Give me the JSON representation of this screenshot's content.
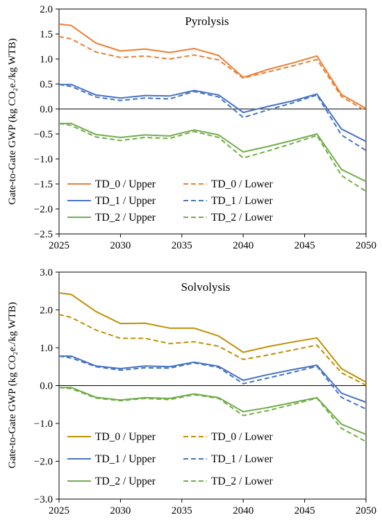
{
  "chart_data": [
    {
      "type": "line",
      "title": "Pyrolysis",
      "ylabel": "Gate-to-Gate GWP (kg CO₂e./kg WTB)",
      "xlabel": "",
      "xlim": [
        2025,
        2050
      ],
      "ylim": [
        -2.5,
        2.0
      ],
      "xticks": [
        2025,
        2030,
        2035,
        2040,
        2045,
        2050
      ],
      "yticks": [
        -2.5,
        -2.0,
        -1.5,
        -1.0,
        -0.5,
        0.0,
        0.5,
        1.0,
        1.5,
        2.0
      ],
      "ytick_labels": [
        "−2.5",
        "−2.0",
        "−1.5",
        "−1.0",
        "−0.5",
        "0.0",
        "0.5",
        "1.0",
        "1.5",
        "2.0"
      ],
      "legend": "lower-left, two columns",
      "grid": false,
      "zero_line": true,
      "x": [
        2025,
        2026,
        2028,
        2030,
        2032,
        2034,
        2036,
        2038,
        2040,
        2042,
        2044,
        2046,
        2048,
        2050
      ],
      "series": [
        {
          "name": "TD_0 / Upper",
          "color": "#ED7D31",
          "dash": "solid",
          "values": [
            1.7,
            1.67,
            1.32,
            1.16,
            1.2,
            1.13,
            1.21,
            1.07,
            0.63,
            0.79,
            0.92,
            1.06,
            0.29,
            0.01
          ]
        },
        {
          "name": "TD_0 / Lower",
          "color": "#ED7D31",
          "dash": "dashed",
          "values": [
            1.45,
            1.4,
            1.14,
            1.03,
            1.06,
            1.0,
            1.08,
            0.98,
            0.62,
            0.74,
            0.86,
            0.99,
            0.25,
            -0.04
          ]
        },
        {
          "name": "TD_1 / Upper",
          "color": "#4472C4",
          "dash": "solid",
          "values": [
            0.49,
            0.49,
            0.28,
            0.22,
            0.27,
            0.26,
            0.37,
            0.28,
            -0.07,
            0.05,
            0.16,
            0.3,
            -0.4,
            -0.65
          ]
        },
        {
          "name": "TD_1 / Lower",
          "color": "#4472C4",
          "dash": "dashed",
          "values": [
            0.49,
            0.45,
            0.24,
            0.17,
            0.22,
            0.2,
            0.35,
            0.24,
            -0.17,
            -0.02,
            0.12,
            0.28,
            -0.52,
            -0.83
          ]
        },
        {
          "name": "TD_2 / Upper",
          "color": "#70AD47",
          "dash": "solid",
          "values": [
            -0.29,
            -0.29,
            -0.51,
            -0.57,
            -0.52,
            -0.54,
            -0.42,
            -0.52,
            -0.86,
            -0.75,
            -0.63,
            -0.5,
            -1.21,
            -1.45
          ]
        },
        {
          "name": "TD_2 / Lower",
          "color": "#70AD47",
          "dash": "dashed",
          "values": [
            -0.29,
            -0.33,
            -0.56,
            -0.63,
            -0.57,
            -0.59,
            -0.45,
            -0.57,
            -0.98,
            -0.84,
            -0.69,
            -0.53,
            -1.33,
            -1.65
          ]
        }
      ]
    },
    {
      "type": "line",
      "title": "Solvolysis",
      "ylabel": "Gate-to-Gate GWP (kg CO₂e./kg WTB)",
      "xlabel": "",
      "xlim": [
        2025,
        2050
      ],
      "ylim": [
        -3.0,
        3.0
      ],
      "xticks": [
        2025,
        2030,
        2035,
        2040,
        2045,
        2050
      ],
      "yticks": [
        -3.0,
        -2.0,
        -1.0,
        0.0,
        1.0,
        2.0,
        3.0
      ],
      "ytick_labels": [
        "−3.0",
        "−2.0",
        "−1.0",
        "0.0",
        "1.0",
        "2.0",
        "3.0"
      ],
      "legend": "lower-left, two columns",
      "grid": false,
      "zero_line": true,
      "x": [
        2025,
        2026,
        2028,
        2030,
        2032,
        2034,
        2036,
        2038,
        2040,
        2042,
        2044,
        2046,
        2048,
        2050
      ],
      "series": [
        {
          "name": "TD_0 / Upper",
          "color": "#BF8F00",
          "dash": "solid",
          "values": [
            2.45,
            2.41,
            1.96,
            1.64,
            1.65,
            1.52,
            1.52,
            1.31,
            0.88,
            1.03,
            1.15,
            1.26,
            0.45,
            0.09
          ]
        },
        {
          "name": "TD_0 / Lower",
          "color": "#BF8F00",
          "dash": "dashed",
          "values": [
            1.88,
            1.8,
            1.47,
            1.25,
            1.25,
            1.11,
            1.16,
            1.04,
            0.69,
            0.81,
            0.94,
            1.07,
            0.34,
            0.01
          ]
        },
        {
          "name": "TD_1 / Upper",
          "color": "#4472C4",
          "dash": "solid",
          "values": [
            0.78,
            0.78,
            0.52,
            0.45,
            0.52,
            0.5,
            0.62,
            0.51,
            0.14,
            0.29,
            0.42,
            0.54,
            -0.2,
            -0.44
          ]
        },
        {
          "name": "TD_1 / Lower",
          "color": "#4472C4",
          "dash": "dashed",
          "values": [
            0.78,
            0.73,
            0.5,
            0.41,
            0.47,
            0.46,
            0.6,
            0.48,
            0.05,
            0.2,
            0.35,
            0.51,
            -0.31,
            -0.62
          ]
        },
        {
          "name": "TD_2 / Upper",
          "color": "#70AD47",
          "dash": "solid",
          "values": [
            -0.05,
            -0.05,
            -0.31,
            -0.38,
            -0.32,
            -0.34,
            -0.22,
            -0.32,
            -0.69,
            -0.58,
            -0.45,
            -0.32,
            -1.02,
            -1.29
          ]
        },
        {
          "name": "TD_2 / Lower",
          "color": "#70AD47",
          "dash": "dashed",
          "values": [
            -0.05,
            -0.08,
            -0.33,
            -0.4,
            -0.34,
            -0.37,
            -0.24,
            -0.34,
            -0.79,
            -0.66,
            -0.5,
            -0.33,
            -1.13,
            -1.48
          ]
        }
      ]
    }
  ]
}
